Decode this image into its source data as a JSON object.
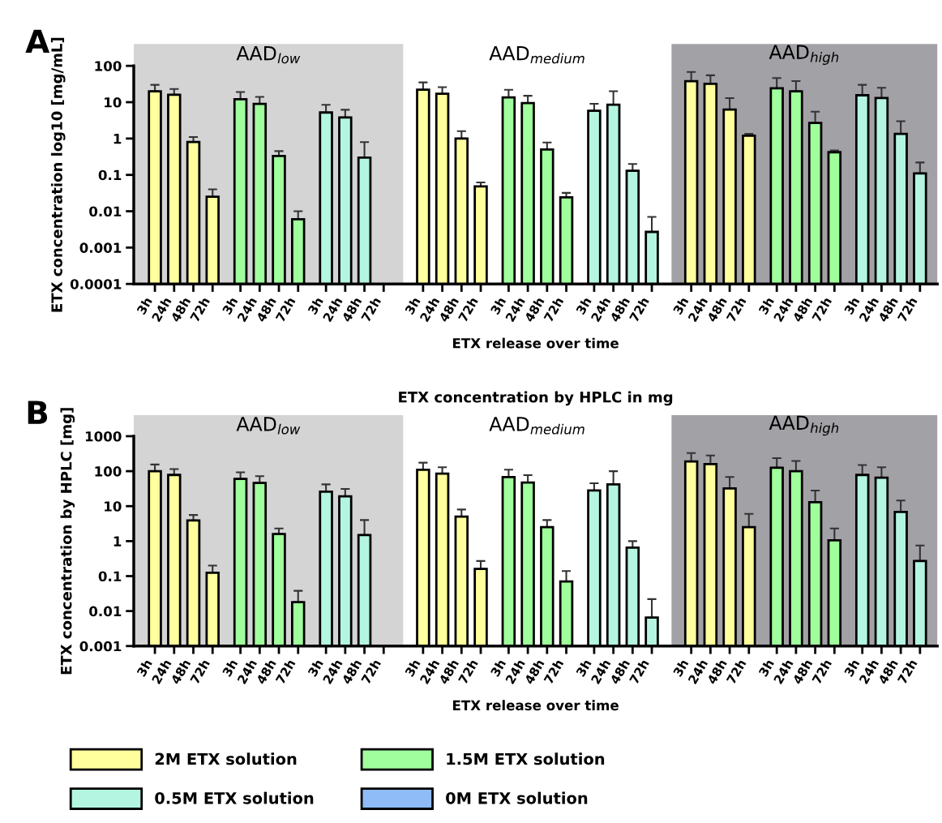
{
  "chart_data": [
    {
      "type": "bar",
      "annotations": [
        "A",
        "AAD$_{low}$",
        "AAD$_{medium}$",
        "AAD$_{high}$"
      ],
      "xlabel": "ETX release over time",
      "ylabel": "ETX concentration log10 [mg/mL]",
      "log": true,
      "ylim": [
        0.0001,
        100
      ],
      "yticks": [
        0.0001,
        0.001,
        0.01,
        0.1,
        1,
        10,
        100
      ],
      "categories": [
        "3h",
        "24h",
        "48h",
        "72h",
        "3h",
        "24h",
        "48h",
        "72h",
        "3h",
        "24h",
        "48h",
        "72h",
        "3h",
        "24h",
        "48h",
        "72h",
        "3h",
        "24h",
        "48h",
        "72h",
        "3h",
        "24h",
        "48h",
        "72h",
        "3h",
        "24h",
        "48h",
        "72h",
        "3h",
        "24h",
        "48h",
        "72h",
        "3h",
        "24h",
        "48h",
        "72h"
      ],
      "series": [
        {
          "color": "#ffff9e",
          "values": [
            20,
            16,
            0.8,
            0.025,
            null,
            null,
            null,
            null,
            null,
            null,
            null,
            null,
            22,
            17,
            1.0,
            0.048,
            null,
            null,
            null,
            null,
            null,
            null,
            null,
            null,
            38,
            32,
            6.3,
            1.2,
            null,
            null,
            null,
            null,
            null,
            null,
            null,
            null
          ],
          "errors": [
            [
              20,
              30
            ],
            [
              16,
              23
            ],
            [
              0.8,
              1.1
            ],
            [
              0.025,
              0.04
            ],
            null,
            null,
            null,
            null,
            null,
            null,
            null,
            null,
            [
              22,
              35
            ],
            [
              17,
              26
            ],
            [
              1.0,
              1.6
            ],
            [
              0.048,
              0.062
            ],
            null,
            null,
            null,
            null,
            null,
            null,
            null,
            null,
            [
              38,
              68
            ],
            [
              32,
              55
            ],
            [
              6.3,
              13
            ],
            [
              1.2,
              1.35
            ],
            null,
            null,
            null,
            null,
            null,
            null,
            null,
            null
          ]
        },
        {
          "color": "#a0ff9c",
          "values": [
            null,
            null,
            null,
            null,
            12,
            9,
            0.33,
            0.006,
            null,
            null,
            null,
            null,
            null,
            null,
            null,
            null,
            13.5,
            9.5,
            0.5,
            0.024,
            null,
            null,
            null,
            null,
            null,
            null,
            null,
            null,
            24,
            20,
            2.7,
            0.42,
            null,
            null,
            null,
            null
          ],
          "errors": [
            null,
            null,
            null,
            null,
            [
              12,
              19
            ],
            [
              9,
              14
            ],
            [
              0.33,
              0.45
            ],
            [
              0.006,
              0.01
            ],
            null,
            null,
            null,
            null,
            null,
            null,
            null,
            null,
            [
              13.5,
              22
            ],
            [
              9.5,
              15
            ],
            [
              0.5,
              0.78
            ],
            [
              0.024,
              0.032
            ],
            null,
            null,
            null,
            null,
            null,
            null,
            null,
            null,
            [
              24,
              46
            ],
            [
              20,
              38
            ],
            [
              2.7,
              5.5
            ],
            [
              0.42,
              0.47
            ],
            null,
            null,
            null,
            null
          ]
        },
        {
          "color": "#b3f5e0",
          "values": [
            null,
            null,
            null,
            null,
            null,
            null,
            null,
            null,
            5.2,
            3.8,
            0.3,
            null,
            null,
            null,
            null,
            null,
            null,
            null,
            null,
            null,
            5.8,
            8.5,
            0.13,
            0.0027,
            null,
            null,
            null,
            null,
            null,
            null,
            null,
            null,
            15.5,
            13,
            1.35,
            0.11
          ],
          "errors": [
            null,
            null,
            null,
            null,
            null,
            null,
            null,
            null,
            [
              5.2,
              8.5
            ],
            [
              3.8,
              6.2
            ],
            [
              0.3,
              0.8
            ],
            null,
            null,
            null,
            null,
            null,
            null,
            null,
            null,
            null,
            [
              5.8,
              9
            ],
            [
              8.5,
              20
            ],
            [
              0.13,
              0.2
            ],
            [
              0.0027,
              0.007
            ],
            null,
            null,
            null,
            null,
            null,
            null,
            null,
            null,
            [
              15.5,
              30
            ],
            [
              13,
              25
            ],
            [
              1.35,
              3
            ],
            [
              0.11,
              0.22
            ]
          ]
        }
      ]
    },
    {
      "type": "bar",
      "annotations": [
        "B",
        "AAD$_{low}$",
        "AAD$_{medium}$",
        "AAD$_{high}$"
      ],
      "title": "ETX concentration by HPLC in mg",
      "xlabel": "ETX release over time",
      "ylabel": "ETX concentration by HPLC [mg]",
      "log": true,
      "ylim": [
        0.001,
        1000
      ],
      "yticks": [
        0.001,
        0.01,
        0.1,
        1,
        10,
        100,
        1000
      ],
      "legend": "bottom",
      "categories": [
        "3h",
        "24h",
        "48h",
        "72h",
        "3h",
        "24h",
        "48h",
        "72h",
        "3h",
        "24h",
        "48h",
        "72h",
        "3h",
        "24h",
        "48h",
        "72h",
        "3h",
        "24h",
        "48h",
        "72h",
        "3h",
        "24h",
        "48h",
        "72h",
        "3h",
        "24h",
        "48h",
        "72h",
        "3h",
        "24h",
        "48h",
        "72h",
        "3h",
        "24h",
        "48h",
        "72h"
      ],
      "series": [
        {
          "name": "2M ETX solution",
          "color": "#ffff9e",
          "values": [
            100,
            78,
            3.9,
            0.125,
            null,
            null,
            null,
            null,
            null,
            null,
            null,
            null,
            110,
            85,
            5,
            0.16,
            null,
            null,
            null,
            null,
            null,
            null,
            null,
            null,
            190,
            160,
            32,
            2.5,
            null,
            null,
            null,
            null,
            null,
            null,
            null,
            null
          ],
          "errors": [
            [
              100,
              155
            ],
            [
              78,
              115
            ],
            [
              3.9,
              5.6
            ],
            [
              0.125,
              0.2
            ],
            null,
            null,
            null,
            null,
            null,
            null,
            null,
            null,
            [
              110,
              175
            ],
            [
              85,
              130
            ],
            [
              5,
              8
            ],
            [
              0.16,
              0.27
            ],
            null,
            null,
            null,
            null,
            null,
            null,
            null,
            null,
            [
              190,
              330
            ],
            [
              160,
              280
            ],
            [
              32,
              68
            ],
            [
              2.5,
              6
            ],
            null,
            null,
            null,
            null,
            null,
            null,
            null,
            null
          ]
        },
        {
          "name": "1.5M ETX solution",
          "color": "#a0ff9c",
          "values": [
            null,
            null,
            null,
            null,
            60,
            46,
            1.6,
            0.018,
            null,
            null,
            null,
            null,
            null,
            null,
            null,
            null,
            68,
            47,
            2.5,
            0.07,
            null,
            null,
            null,
            null,
            null,
            null,
            null,
            null,
            125,
            100,
            13,
            1.05,
            null,
            null,
            null,
            null
          ],
          "errors": [
            null,
            null,
            null,
            null,
            [
              60,
              93
            ],
            [
              46,
              72
            ],
            [
              1.6,
              2.3
            ],
            [
              0.018,
              0.038
            ],
            null,
            null,
            null,
            null,
            null,
            null,
            null,
            null,
            [
              68,
              110
            ],
            [
              47,
              77
            ],
            [
              2.5,
              4
            ],
            [
              0.07,
              0.14
            ],
            null,
            null,
            null,
            null,
            null,
            null,
            null,
            null,
            [
              125,
              235
            ],
            [
              100,
              195
            ],
            [
              13,
              28
            ],
            [
              1.05,
              2.3
            ],
            null,
            null,
            null,
            null
          ]
        },
        {
          "name": "0.5M ETX solution",
          "color": "#b3f5e0",
          "values": [
            null,
            null,
            null,
            null,
            null,
            null,
            null,
            null,
            26,
            19,
            1.5,
            null,
            null,
            null,
            null,
            null,
            null,
            null,
            null,
            null,
            28,
            42,
            0.65,
            0.0065,
            null,
            null,
            null,
            null,
            null,
            null,
            null,
            null,
            78,
            65,
            6.8,
            0.27
          ],
          "errors": [
            null,
            null,
            null,
            null,
            null,
            null,
            null,
            null,
            [
              26,
              42
            ],
            [
              19,
              31
            ],
            [
              1.5,
              4
            ],
            null,
            null,
            null,
            null,
            null,
            null,
            null,
            null,
            null,
            [
              28,
              45
            ],
            [
              42,
              100
            ],
            [
              0.65,
              1.0
            ],
            [
              0.0065,
              0.022
            ],
            null,
            null,
            null,
            null,
            null,
            null,
            null,
            null,
            [
              78,
              150
            ],
            [
              65,
              130
            ],
            [
              6.8,
              14.5
            ],
            [
              0.27,
              0.75
            ]
          ]
        },
        {
          "name": "0M ETX solution",
          "color": "#8fbcf7",
          "values": [
            null,
            null,
            null,
            null,
            null,
            null,
            null,
            null,
            null,
            null,
            null,
            null,
            null,
            null,
            null,
            null,
            null,
            null,
            null,
            null,
            null,
            null,
            null,
            null,
            null,
            null,
            null,
            null,
            null,
            null,
            null,
            null,
            null,
            null,
            null,
            null
          ]
        }
      ]
    }
  ]
}
